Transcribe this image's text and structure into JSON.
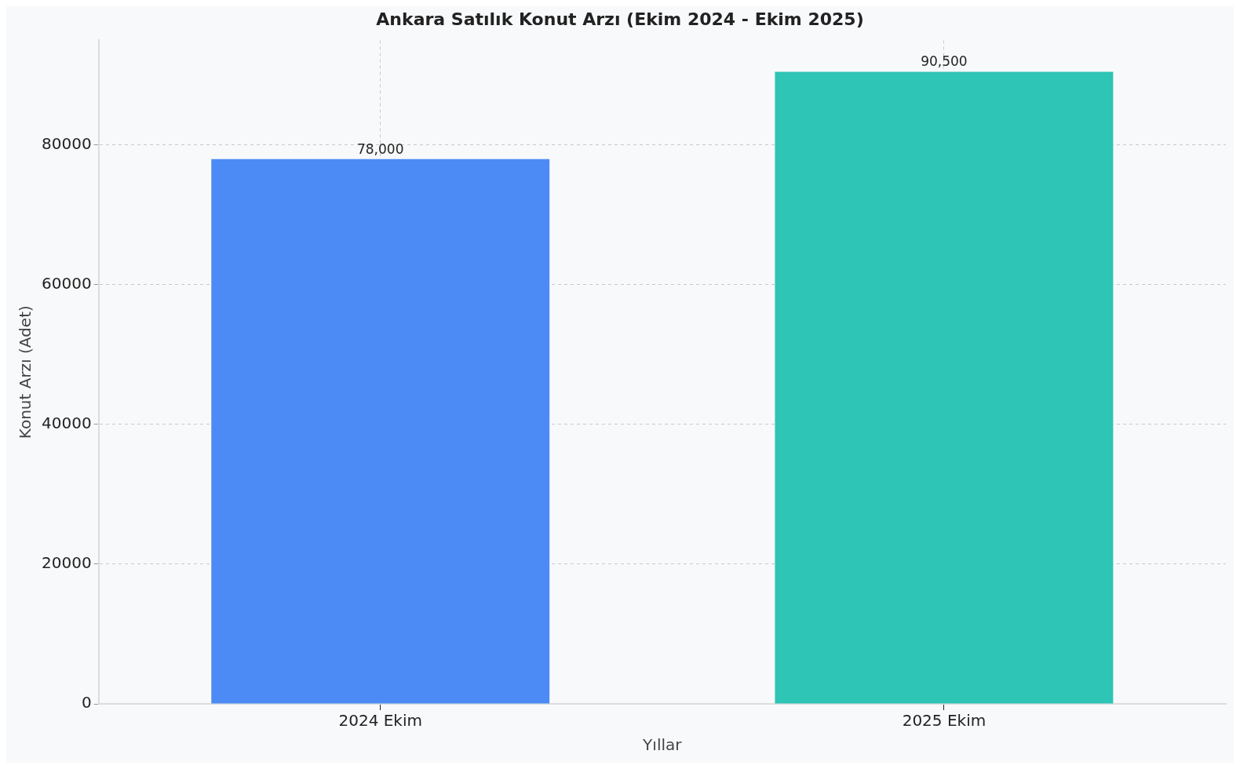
{
  "chart_data": {
    "type": "bar",
    "title": "Ankara Satılık Konut Arzı (Ekim 2024 - Ekim 2025)",
    "xlabel": "Yıllar",
    "ylabel": "Konut Arzı (Adet)",
    "categories": [
      "2024 Ekim",
      "2025 Ekim"
    ],
    "values": [
      78000,
      90500
    ],
    "colors": [
      "#4c8bf5",
      "#2ec4b6"
    ],
    "value_labels": [
      "78,000",
      "90,500"
    ],
    "ylim": [
      0,
      95000
    ],
    "yticks": [
      0,
      20000,
      40000,
      60000,
      80000
    ],
    "grid": true
  }
}
